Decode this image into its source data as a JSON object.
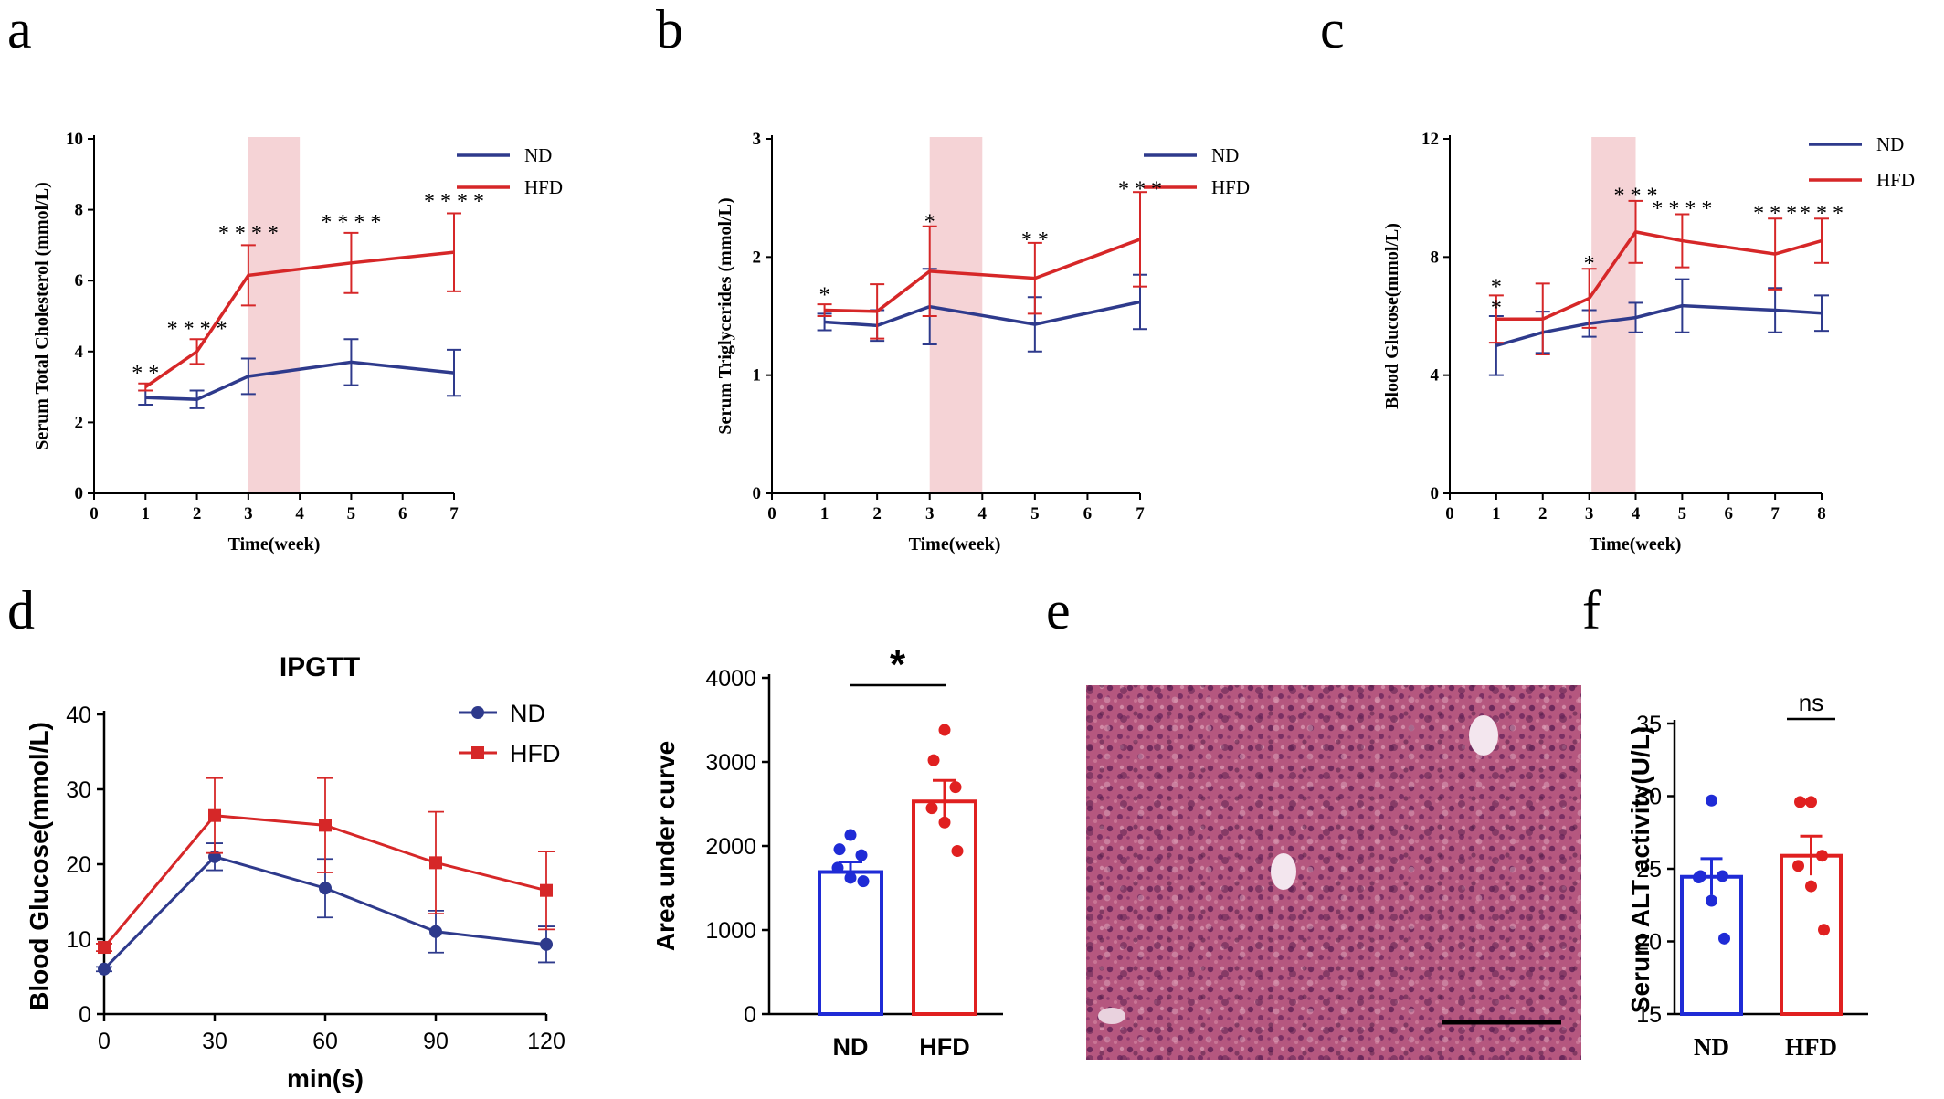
{
  "panel_labels": [
    "a",
    "b",
    "c",
    "d",
    "e",
    "f"
  ],
  "chart_data": [
    {
      "id": "a",
      "type": "line",
      "ylabel": "Serum Total Cholesterol (mmol/L)",
      "xlabel": "Time(week)",
      "xlim": [
        0,
        7
      ],
      "ylim": [
        0,
        10
      ],
      "xticks": [
        0,
        1,
        2,
        3,
        4,
        5,
        6,
        7
      ],
      "yticks": [
        0,
        2,
        4,
        6,
        8,
        10
      ],
      "shade": [
        3,
        4
      ],
      "legend_position": "top-right",
      "series": [
        {
          "name": "ND",
          "color": "#2e3a8c",
          "x": [
            1,
            2,
            3,
            5,
            7
          ],
          "y": [
            2.7,
            2.65,
            3.3,
            3.7,
            3.4
          ],
          "err": [
            0.2,
            0.25,
            0.5,
            0.65,
            0.65
          ]
        },
        {
          "name": "HFD",
          "color": "#d62728",
          "x": [
            1,
            2,
            3,
            5,
            7
          ],
          "y": [
            3.0,
            4.0,
            6.15,
            6.5,
            6.8
          ],
          "err": [
            0.1,
            0.35,
            0.85,
            0.85,
            1.1
          ]
        }
      ],
      "annotations": [
        {
          "x": 1,
          "y": 3.4,
          "text": "* *"
        },
        {
          "x": 2,
          "y": 4.65,
          "text": "* * * *"
        },
        {
          "x": 3,
          "y": 7.35,
          "text": "* * * *"
        },
        {
          "x": 5,
          "y": 7.65,
          "text": "* * * *"
        },
        {
          "x": 7,
          "y": 8.25,
          "text": "* * * *"
        }
      ]
    },
    {
      "id": "b",
      "type": "line",
      "ylabel": "Serum Triglycerides (mmol/L)",
      "xlabel": "Time(week)",
      "xlim": [
        0,
        7
      ],
      "ylim": [
        0,
        3
      ],
      "xticks": [
        0,
        1,
        2,
        3,
        4,
        5,
        6,
        7
      ],
      "yticks": [
        0,
        1,
        2,
        3
      ],
      "shade": [
        3,
        4
      ],
      "legend_position": "top-right",
      "series": [
        {
          "name": "ND",
          "color": "#2e3a8c",
          "x": [
            1,
            2,
            3,
            5,
            7
          ],
          "y": [
            1.45,
            1.42,
            1.58,
            1.43,
            1.62
          ],
          "err": [
            0.07,
            0.13,
            0.32,
            0.23,
            0.23
          ]
        },
        {
          "name": "HFD",
          "color": "#d62728",
          "x": [
            1,
            2,
            3,
            5,
            7
          ],
          "y": [
            1.55,
            1.54,
            1.88,
            1.82,
            2.15
          ],
          "err": [
            0.05,
            0.23,
            0.38,
            0.3,
            0.4
          ]
        }
      ],
      "annotations": [
        {
          "x": 1,
          "y": 1.68,
          "text": "*"
        },
        {
          "x": 3,
          "y": 2.3,
          "text": "*"
        },
        {
          "x": 5,
          "y": 2.15,
          "text": "* *"
        },
        {
          "x": 7,
          "y": 2.58,
          "text": "* * *"
        }
      ]
    },
    {
      "id": "c",
      "type": "line",
      "ylabel": "Blood Glucose(mmol/L)",
      "xlabel": "Time(week)",
      "xlim": [
        0,
        8
      ],
      "ylim": [
        0,
        12
      ],
      "xticks": [
        0,
        1,
        2,
        3,
        4,
        5,
        6,
        7,
        8
      ],
      "yticks": [
        0,
        4,
        8,
        12
      ],
      "shade": [
        3.05,
        4
      ],
      "legend_position": "top-right",
      "series": [
        {
          "name": "ND",
          "color": "#2e3a8c",
          "x": [
            1,
            2,
            3,
            4,
            5,
            7,
            8
          ],
          "y": [
            5.0,
            5.45,
            5.75,
            5.95,
            6.35,
            6.2,
            6.1
          ],
          "err": [
            1.0,
            0.7,
            0.45,
            0.5,
            0.9,
            0.75,
            0.6
          ]
        },
        {
          "name": "HFD",
          "color": "#d62728",
          "x": [
            1,
            2,
            3,
            4,
            5,
            7,
            8
          ],
          "y": [
            5.9,
            5.9,
            6.6,
            8.85,
            8.55,
            8.1,
            8.55
          ],
          "err": [
            0.8,
            1.2,
            1.0,
            1.05,
            0.9,
            1.2,
            0.75
          ]
        }
      ],
      "annotations": [
        {
          "x": 1,
          "y": 7.0,
          "text": "*"
        },
        {
          "x": 1,
          "y": 6.3,
          "text": "*"
        },
        {
          "x": 3,
          "y": 7.8,
          "text": "*"
        },
        {
          "x": 4,
          "y": 10.1,
          "text": "* * *"
        },
        {
          "x": 5,
          "y": 9.65,
          "text": "* * * *"
        },
        {
          "x": 7,
          "y": 9.5,
          "text": "* * *"
        },
        {
          "x": 8,
          "y": 9.5,
          "text": "* * *"
        }
      ]
    },
    {
      "id": "d1",
      "type": "line",
      "title": "IPGTT",
      "ylabel": "Blood Glucose(mmol/L)",
      "xlabel": "min(s)",
      "xlim": [
        0,
        120
      ],
      "ylim": [
        0,
        40
      ],
      "xticks": [
        0,
        30,
        60,
        90,
        120
      ],
      "yticks": [
        0,
        10,
        20,
        30,
        40
      ],
      "legend_position": "top-right",
      "series": [
        {
          "name": "ND",
          "color": "#2e3a8c",
          "marker": "circle",
          "x": [
            0,
            30,
            60,
            90,
            120
          ],
          "y": [
            6.0,
            21.0,
            16.8,
            11.0,
            9.3
          ],
          "err": [
            0.3,
            1.8,
            3.9,
            2.8,
            2.4
          ]
        },
        {
          "name": "HFD",
          "color": "#d62728",
          "marker": "square",
          "x": [
            0,
            30,
            60,
            90,
            120
          ],
          "y": [
            8.9,
            26.5,
            25.2,
            20.2,
            16.5
          ],
          "err": [
            0.5,
            5.0,
            6.3,
            6.8,
            5.2
          ]
        }
      ]
    },
    {
      "id": "d2",
      "type": "bar",
      "ylabel": "Area under curve",
      "categories": [
        "ND",
        "HFD"
      ],
      "values": [
        1690,
        2530
      ],
      "err": [
        120,
        250
      ],
      "colors": [
        "#1f2bd6",
        "#e02020"
      ],
      "points": [
        [
          2130,
          1960,
          1890,
          1740,
          1620,
          1580
        ],
        [
          3380,
          3020,
          2700,
          2450,
          2280,
          1940
        ]
      ],
      "ylim": [
        0,
        4000
      ],
      "yticks": [
        0,
        1000,
        2000,
        3000,
        4000
      ],
      "significance": "*"
    },
    {
      "id": "f",
      "type": "bar",
      "ylabel": "Serum ALT activity(U/L)",
      "categories": [
        "ND",
        "HFD"
      ],
      "values": [
        24.45,
        25.9
      ],
      "err": [
        1.25,
        1.35
      ],
      "colors": [
        "#1f2bd6",
        "#e02020"
      ],
      "points": [
        [
          29.7,
          24.5,
          24.5,
          24.4,
          22.8,
          20.2
        ],
        [
          29.6,
          29.6,
          25.9,
          25.2,
          23.8,
          20.8
        ]
      ],
      "ylim": [
        15,
        35
      ],
      "yticks": [
        15,
        20,
        25,
        30,
        35
      ],
      "significance": "ns"
    }
  ],
  "image_e": {
    "icon": "liver-histology-image",
    "scale_bar": true
  }
}
